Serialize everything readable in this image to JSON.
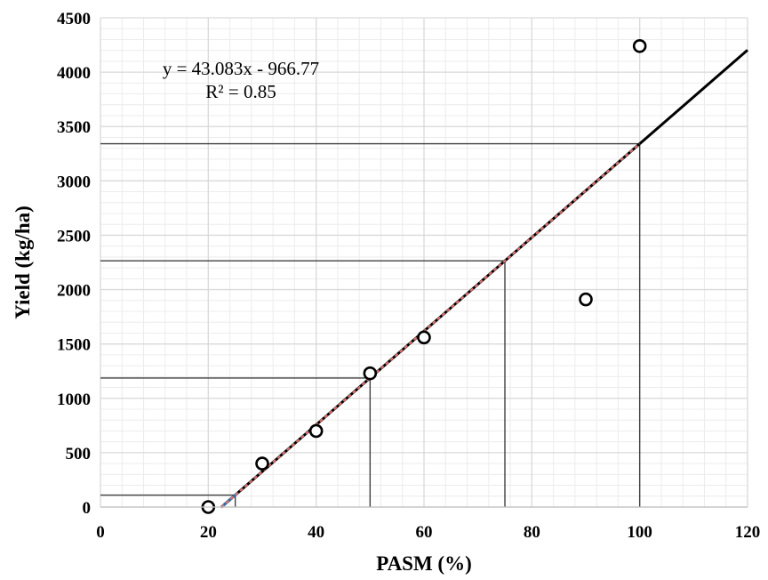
{
  "chart_data": {
    "type": "scatter",
    "xlabel": "PASM (%)",
    "ylabel": "Yield (kg/ha)",
    "xlim": [
      0,
      120
    ],
    "ylim": [
      0,
      4500
    ],
    "xticks": [
      0,
      20,
      40,
      60,
      80,
      100,
      120
    ],
    "yticks": [
      0,
      500,
      1000,
      1500,
      2000,
      2500,
      3000,
      3500,
      4000,
      4500
    ],
    "grid": true,
    "minor_grid": true,
    "points": [
      {
        "x": 20,
        "y": 0
      },
      {
        "x": 30,
        "y": 400
      },
      {
        "x": 40,
        "y": 700
      },
      {
        "x": 50,
        "y": 1230
      },
      {
        "x": 60,
        "y": 1560
      },
      {
        "x": 90,
        "y": 1910
      },
      {
        "x": 100,
        "y": 4240
      }
    ],
    "fit": {
      "slope": 43.083,
      "intercept": -966.77,
      "x_start": 22.4,
      "x_end": 120
    },
    "fit_dashed_range": [
      22.4,
      100
    ],
    "fit_dashed_color": "#e07070",
    "fit_underlay_color": "#2d6ea8",
    "equation": "y = 43.083x - 966.77",
    "r_squared": "R² = 0.85",
    "reference_lines": [
      {
        "x": 25,
        "y": 110
      },
      {
        "x": 50,
        "y": 1187
      },
      {
        "x": 75,
        "y": 2265
      },
      {
        "x": 100,
        "y": 3342
      }
    ],
    "colors": {
      "grid": "#d9d9d9",
      "minor_grid": "#ececec",
      "reference": "#404040",
      "fit": "#000000",
      "marker": "#000000"
    }
  }
}
